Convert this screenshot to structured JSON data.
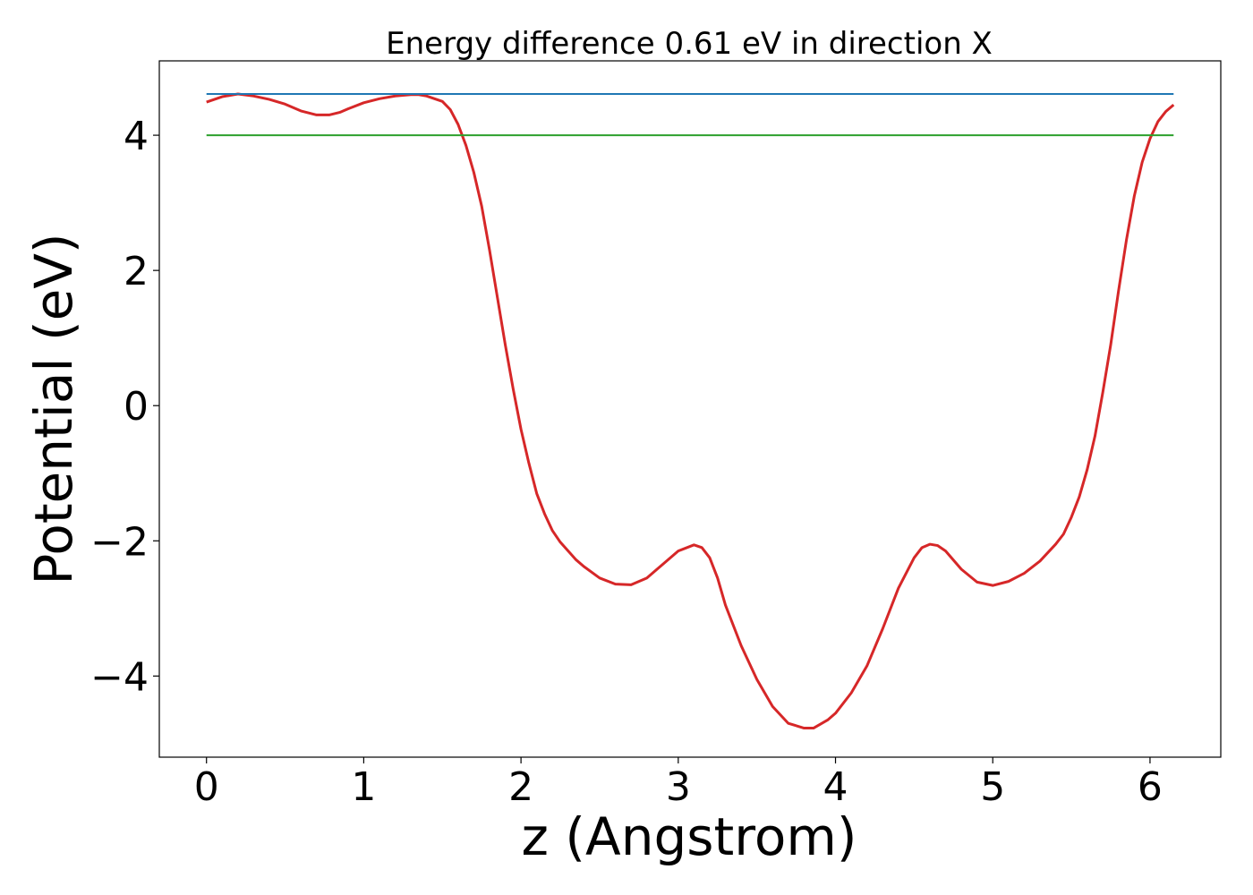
{
  "chart_data": {
    "type": "line",
    "title": "Energy difference 0.61 eV in direction X",
    "xlabel": "z (Angstrom)",
    "ylabel": "Potential (eV)",
    "xlim": [
      -0.3,
      6.45
    ],
    "ylim": [
      -5.2,
      5.1
    ],
    "xticks": [
      0,
      1,
      2,
      3,
      4,
      5,
      6
    ],
    "yticks": [
      -4,
      -2,
      0,
      2,
      4
    ],
    "xtick_labels": [
      "0",
      "1",
      "2",
      "3",
      "4",
      "5",
      "6"
    ],
    "ytick_labels": [
      "−4",
      "−2",
      "0",
      "2",
      "4"
    ],
    "grid": false,
    "legend": "none",
    "series": [
      {
        "color": "#d62728",
        "x": [
          0.0,
          0.1,
          0.2,
          0.3,
          0.4,
          0.5,
          0.6,
          0.7,
          0.78,
          0.85,
          0.9,
          1.0,
          1.1,
          1.2,
          1.3,
          1.35,
          1.4,
          1.5,
          1.55,
          1.6,
          1.65,
          1.7,
          1.75,
          1.8,
          1.85,
          1.9,
          1.95,
          2.0,
          2.05,
          2.1,
          2.15,
          2.2,
          2.25,
          2.3,
          2.35,
          2.4,
          2.5,
          2.6,
          2.7,
          2.8,
          2.9,
          3.0,
          3.1,
          3.15,
          3.2,
          3.25,
          3.3,
          3.4,
          3.5,
          3.6,
          3.7,
          3.8,
          3.86,
          3.95,
          4.0,
          4.1,
          4.2,
          4.3,
          4.4,
          4.5,
          4.55,
          4.6,
          4.65,
          4.7,
          4.8,
          4.9,
          5.0,
          5.1,
          5.2,
          5.3,
          5.4,
          5.45,
          5.5,
          5.55,
          5.6,
          5.65,
          5.7,
          5.75,
          5.8,
          5.85,
          5.9,
          5.95,
          6.0,
          6.05,
          6.1,
          6.15
        ],
        "y": [
          4.49,
          4.57,
          4.61,
          4.58,
          4.53,
          4.46,
          4.36,
          4.3,
          4.3,
          4.34,
          4.39,
          4.48,
          4.54,
          4.58,
          4.6,
          4.6,
          4.58,
          4.5,
          4.38,
          4.16,
          3.85,
          3.45,
          2.95,
          2.3,
          1.6,
          0.9,
          0.25,
          -0.35,
          -0.85,
          -1.3,
          -1.6,
          -1.85,
          -2.02,
          -2.15,
          -2.28,
          -2.38,
          -2.55,
          -2.64,
          -2.65,
          -2.55,
          -2.35,
          -2.15,
          -2.06,
          -2.1,
          -2.25,
          -2.55,
          -2.95,
          -3.55,
          -4.05,
          -4.45,
          -4.7,
          -4.77,
          -4.77,
          -4.65,
          -4.55,
          -4.25,
          -3.85,
          -3.3,
          -2.7,
          -2.25,
          -2.1,
          -2.05,
          -2.07,
          -2.15,
          -2.42,
          -2.61,
          -2.66,
          -2.6,
          -2.48,
          -2.3,
          -2.05,
          -1.9,
          -1.65,
          -1.35,
          -0.95,
          -0.45,
          0.2,
          0.9,
          1.7,
          2.45,
          3.1,
          3.6,
          3.95,
          4.2,
          4.35,
          4.45
        ]
      },
      {
        "color": "#1f77b4",
        "x": [
          0.0,
          6.15
        ],
        "y": [
          4.61,
          4.61
        ]
      },
      {
        "color": "#2ca02c",
        "x": [
          0.0,
          6.15
        ],
        "y": [
          4.0,
          4.0
        ]
      }
    ]
  }
}
